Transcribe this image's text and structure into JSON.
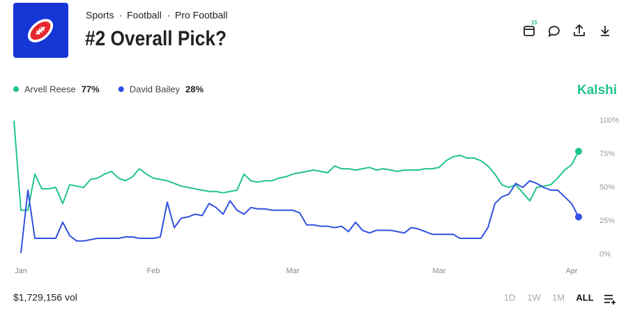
{
  "header": {
    "breadcrumb": [
      "Sports",
      "Football",
      "Pro Football"
    ],
    "separator": "·",
    "title": "#2 Overall Pick?",
    "calendar_badge": "15"
  },
  "brand": "Kalshi",
  "volume": "$1,729,156 vol",
  "ranges": [
    "1D",
    "1W",
    "1M",
    "ALL"
  ],
  "active_range": 3,
  "chart_data": {
    "type": "line",
    "categories": [
      null,
      "Jan",
      null,
      null,
      null,
      null,
      null,
      null,
      null,
      null,
      null,
      null,
      null,
      null,
      null,
      null,
      null,
      null,
      null,
      null,
      "Feb",
      null,
      null,
      null,
      null,
      null,
      null,
      null,
      null,
      null,
      null,
      null,
      null,
      null,
      null,
      null,
      null,
      null,
      null,
      null,
      "Mar",
      null,
      null,
      null,
      null,
      null,
      null,
      null,
      null,
      null,
      null,
      null,
      null,
      null,
      null,
      null,
      null,
      null,
      null,
      null,
      null,
      "Mar",
      null,
      null,
      null,
      null,
      null,
      null,
      null,
      null,
      null,
      null,
      null,
      null,
      null,
      null,
      null,
      null,
      null,
      null,
      "Apr",
      null
    ],
    "series": [
      {
        "name": "Arvell Reese",
        "color": "#21c38b",
        "current_label": "77%",
        "values": [
          100,
          33,
          33,
          60,
          49,
          49,
          50,
          38,
          52,
          51,
          50,
          56,
          57,
          60,
          62,
          57,
          55,
          58,
          64,
          60,
          57,
          56,
          55,
          53,
          51,
          50,
          49,
          48,
          47,
          47,
          46,
          47,
          48,
          60,
          55,
          54,
          55,
          55,
          57,
          58,
          60,
          61,
          62,
          63,
          62,
          61,
          66,
          64,
          64,
          63,
          64,
          65,
          63,
          64,
          63,
          62,
          63,
          63,
          63,
          64,
          64,
          65,
          70,
          73,
          74,
          72,
          72,
          70,
          66,
          60,
          52,
          50,
          52,
          46,
          40,
          50,
          51,
          52,
          57,
          63,
          67,
          77
        ]
      },
      {
        "name": "David Bailey",
        "color": "#3050e0",
        "current_label": "28%",
        "values": [
          null,
          1,
          48,
          12,
          12,
          12,
          12,
          24,
          14,
          10,
          10,
          11,
          12,
          12,
          12,
          12,
          13,
          13,
          12,
          12,
          12,
          13,
          39,
          20,
          27,
          28,
          30,
          29,
          38,
          35,
          30,
          40,
          33,
          30,
          35,
          34,
          34,
          33,
          33,
          33,
          33,
          31,
          22,
          22,
          21,
          21,
          20,
          21,
          17,
          24,
          18,
          16,
          18,
          18,
          18,
          17,
          16,
          20,
          19,
          17,
          15,
          15,
          15,
          15,
          12,
          12,
          12,
          12,
          20,
          38,
          43,
          45,
          53,
          50,
          55,
          53,
          50,
          48,
          48,
          43,
          38,
          28
        ]
      }
    ],
    "ylim": [
      0,
      100
    ],
    "yticks": [
      {
        "value": 0,
        "label": "0%"
      },
      {
        "value": 25,
        "label": "25%"
      },
      {
        "value": 50,
        "label": "50%"
      },
      {
        "value": 75,
        "label": "75%"
      },
      {
        "value": 100,
        "label": "100%"
      }
    ],
    "grid": false
  }
}
